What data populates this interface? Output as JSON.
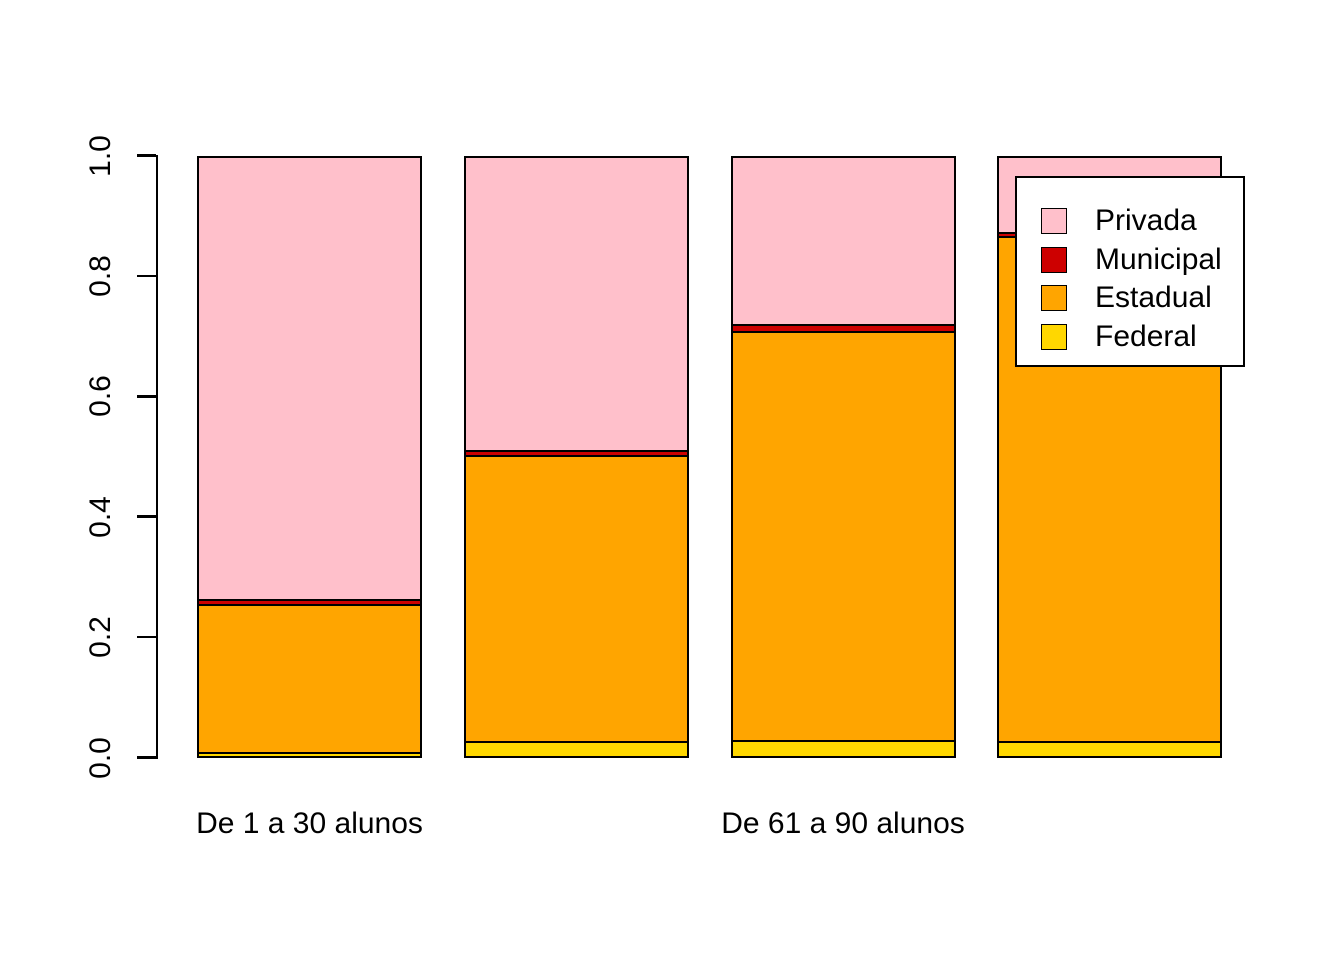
{
  "figure": {
    "background_color": "#FFFFFF",
    "text_color": "#000000"
  },
  "chart_data": {
    "type": "bar",
    "stacked": true,
    "title": "",
    "xlabel": "",
    "ylabel": "",
    "ylim": [
      0.0,
      1.0
    ],
    "grid": false,
    "y_tick_values": [
      0.0,
      0.2,
      0.4,
      0.6,
      0.8,
      1.0
    ],
    "y_tick_labels": [
      "0.0",
      "0.2",
      "0.4",
      "0.6",
      "0.8",
      "1.0"
    ],
    "categories": [
      "De 1 a 30 alunos",
      "",
      "De 61 a 90 alunos",
      ""
    ],
    "series": [
      {
        "name": "Federal",
        "color": "#FFD700",
        "values": [
          0.008,
          0.026,
          0.028,
          0.025
        ]
      },
      {
        "name": "Estadual",
        "color": "#FFA500",
        "values": [
          0.246,
          0.475,
          0.679,
          0.839
        ]
      },
      {
        "name": "Municipal",
        "color": "#CD0000",
        "values": [
          0.007,
          0.008,
          0.012,
          0.008
        ]
      },
      {
        "name": "Privada",
        "color": "#FFC0CB",
        "values": [
          0.739,
          0.491,
          0.281,
          0.128
        ]
      }
    ],
    "series_stacking_note": "series listed bottom-to-top of each stacked bar; every bar sums to 1.0",
    "bar_border_color": "#000000",
    "legend": {
      "position": "top-right",
      "background": "#FFFFFF",
      "border_color": "#000000",
      "entries": [
        {
          "label": "Privada",
          "color": "#FFC0CB"
        },
        {
          "label": "Municipal",
          "color": "#CD0000"
        },
        {
          "label": "Estadual",
          "color": "#FFA500"
        },
        {
          "label": "Federal",
          "color": "#FFD700"
        }
      ]
    }
  }
}
